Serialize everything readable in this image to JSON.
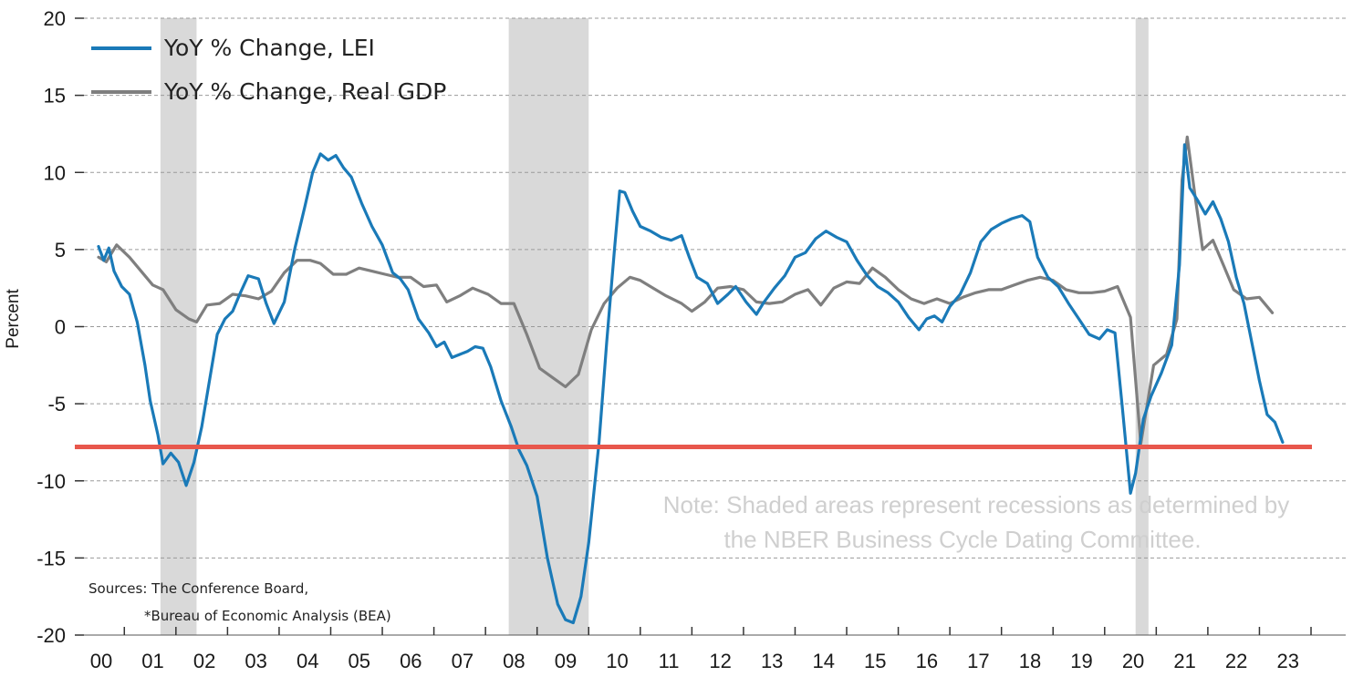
{
  "chart_data": {
    "type": "line",
    "ylabel": "Percent",
    "ylim": [
      -20,
      20
    ],
    "yticks": [
      20,
      15,
      10,
      5,
      0,
      -5,
      -10,
      -15,
      -20
    ],
    "xticks": [
      "00",
      "01",
      "02",
      "03",
      "04",
      "05",
      "06",
      "07",
      "08",
      "09",
      "10",
      "11",
      "12",
      "13",
      "14",
      "15",
      "16",
      "17",
      "18",
      "19",
      "20",
      "21",
      "22",
      "23"
    ],
    "xlim": [
      2000.0,
      2023.5
    ],
    "grid": "horizontal dashed",
    "legend_position": "top-left",
    "reference_line": {
      "y": -7.8,
      "color": "#e8574c"
    },
    "recessions": [
      [
        2001.2,
        2001.9
      ],
      [
        2007.95,
        2009.5
      ],
      [
        2020.1,
        2020.35
      ]
    ],
    "series": [
      {
        "name": "YoY % Change, LEI",
        "color": "#1a7ab8",
        "points": [
          [
            2000.0,
            5.2
          ],
          [
            2000.1,
            4.3
          ],
          [
            2000.2,
            5.1
          ],
          [
            2000.3,
            3.6
          ],
          [
            2000.45,
            2.6
          ],
          [
            2000.6,
            2.1
          ],
          [
            2000.75,
            0.3
          ],
          [
            2000.9,
            -2.5
          ],
          [
            2001.0,
            -4.8
          ],
          [
            2001.15,
            -7.0
          ],
          [
            2001.25,
            -8.9
          ],
          [
            2001.4,
            -8.2
          ],
          [
            2001.55,
            -8.8
          ],
          [
            2001.7,
            -10.3
          ],
          [
            2001.85,
            -8.8
          ],
          [
            2002.0,
            -6.5
          ],
          [
            2002.15,
            -3.5
          ],
          [
            2002.3,
            -0.5
          ],
          [
            2002.45,
            0.5
          ],
          [
            2002.6,
            1.0
          ],
          [
            2002.75,
            2.2
          ],
          [
            2002.9,
            3.3
          ],
          [
            2003.1,
            3.1
          ],
          [
            2003.25,
            1.5
          ],
          [
            2003.4,
            0.2
          ],
          [
            2003.6,
            1.6
          ],
          [
            2003.8,
            5.0
          ],
          [
            2004.0,
            7.8
          ],
          [
            2004.15,
            10.0
          ],
          [
            2004.3,
            11.2
          ],
          [
            2004.45,
            10.8
          ],
          [
            2004.6,
            11.1
          ],
          [
            2004.75,
            10.3
          ],
          [
            2004.9,
            9.7
          ],
          [
            2005.1,
            8.0
          ],
          [
            2005.3,
            6.5
          ],
          [
            2005.5,
            5.3
          ],
          [
            2005.7,
            3.5
          ],
          [
            2005.85,
            3.1
          ],
          [
            2006.0,
            2.4
          ],
          [
            2006.2,
            0.5
          ],
          [
            2006.4,
            -0.4
          ],
          [
            2006.55,
            -1.3
          ],
          [
            2006.7,
            -1.0
          ],
          [
            2006.85,
            -2.0
          ],
          [
            2007.0,
            -1.8
          ],
          [
            2007.15,
            -1.6
          ],
          [
            2007.3,
            -1.3
          ],
          [
            2007.45,
            -1.4
          ],
          [
            2007.6,
            -2.6
          ],
          [
            2007.8,
            -4.8
          ],
          [
            2008.0,
            -6.5
          ],
          [
            2008.15,
            -8.0
          ],
          [
            2008.3,
            -9.0
          ],
          [
            2008.5,
            -11.0
          ],
          [
            2008.7,
            -15.0
          ],
          [
            2008.9,
            -18.0
          ],
          [
            2009.05,
            -19.0
          ],
          [
            2009.2,
            -19.2
          ],
          [
            2009.35,
            -17.5
          ],
          [
            2009.5,
            -14.0
          ],
          [
            2009.7,
            -7.5
          ],
          [
            2009.85,
            -1.0
          ],
          [
            2010.0,
            5.0
          ],
          [
            2010.1,
            8.8
          ],
          [
            2010.2,
            8.7
          ],
          [
            2010.35,
            7.5
          ],
          [
            2010.5,
            6.5
          ],
          [
            2010.7,
            6.2
          ],
          [
            2010.9,
            5.8
          ],
          [
            2011.1,
            5.6
          ],
          [
            2011.3,
            5.9
          ],
          [
            2011.45,
            4.5
          ],
          [
            2011.6,
            3.2
          ],
          [
            2011.8,
            2.8
          ],
          [
            2012.0,
            1.5
          ],
          [
            2012.2,
            2.1
          ],
          [
            2012.35,
            2.6
          ],
          [
            2012.55,
            1.6
          ],
          [
            2012.75,
            0.8
          ],
          [
            2012.9,
            1.6
          ],
          [
            2013.1,
            2.5
          ],
          [
            2013.3,
            3.3
          ],
          [
            2013.5,
            4.5
          ],
          [
            2013.7,
            4.8
          ],
          [
            2013.9,
            5.7
          ],
          [
            2014.1,
            6.2
          ],
          [
            2014.3,
            5.8
          ],
          [
            2014.5,
            5.5
          ],
          [
            2014.7,
            4.3
          ],
          [
            2014.9,
            3.3
          ],
          [
            2015.1,
            2.6
          ],
          [
            2015.3,
            2.2
          ],
          [
            2015.5,
            1.6
          ],
          [
            2015.7,
            0.6
          ],
          [
            2015.9,
            -0.2
          ],
          [
            2016.05,
            0.5
          ],
          [
            2016.2,
            0.7
          ],
          [
            2016.35,
            0.3
          ],
          [
            2016.5,
            1.3
          ],
          [
            2016.7,
            2.1
          ],
          [
            2016.9,
            3.5
          ],
          [
            2017.1,
            5.5
          ],
          [
            2017.3,
            6.3
          ],
          [
            2017.5,
            6.7
          ],
          [
            2017.7,
            7.0
          ],
          [
            2017.9,
            7.2
          ],
          [
            2018.05,
            6.8
          ],
          [
            2018.2,
            4.5
          ],
          [
            2018.4,
            3.2
          ],
          [
            2018.6,
            2.6
          ],
          [
            2018.8,
            1.5
          ],
          [
            2019.0,
            0.5
          ],
          [
            2019.2,
            -0.5
          ],
          [
            2019.4,
            -0.8
          ],
          [
            2019.55,
            -0.2
          ],
          [
            2019.7,
            -0.4
          ],
          [
            2019.85,
            -5.5
          ],
          [
            2020.0,
            -10.8
          ],
          [
            2020.1,
            -9.5
          ],
          [
            2020.25,
            -6.0
          ],
          [
            2020.4,
            -4.5
          ],
          [
            2020.6,
            -3.0
          ],
          [
            2020.8,
            -1.2
          ],
          [
            2020.95,
            4.0
          ],
          [
            2021.05,
            11.8
          ],
          [
            2021.15,
            9.0
          ],
          [
            2021.3,
            8.2
          ],
          [
            2021.45,
            7.3
          ],
          [
            2021.6,
            8.1
          ],
          [
            2021.75,
            7.0
          ],
          [
            2021.9,
            5.5
          ],
          [
            2022.05,
            3.2
          ],
          [
            2022.2,
            1.5
          ],
          [
            2022.35,
            -1.0
          ],
          [
            2022.5,
            -3.5
          ],
          [
            2022.65,
            -5.7
          ],
          [
            2022.8,
            -6.2
          ],
          [
            2022.95,
            -7.5
          ]
        ]
      },
      {
        "name": "YoY % Change, Real GDP",
        "color": "#7f7f7f",
        "points": [
          [
            2000.0,
            4.5
          ],
          [
            2000.15,
            4.2
          ],
          [
            2000.35,
            5.3
          ],
          [
            2000.6,
            4.5
          ],
          [
            2000.85,
            3.5
          ],
          [
            2001.05,
            2.7
          ],
          [
            2001.25,
            2.4
          ],
          [
            2001.5,
            1.1
          ],
          [
            2001.75,
            0.5
          ],
          [
            2001.9,
            0.3
          ],
          [
            2002.1,
            1.4
          ],
          [
            2002.35,
            1.5
          ],
          [
            2002.6,
            2.1
          ],
          [
            2002.85,
            2.0
          ],
          [
            2003.1,
            1.8
          ],
          [
            2003.35,
            2.3
          ],
          [
            2003.6,
            3.5
          ],
          [
            2003.85,
            4.3
          ],
          [
            2004.1,
            4.3
          ],
          [
            2004.3,
            4.1
          ],
          [
            2004.55,
            3.4
          ],
          [
            2004.8,
            3.4
          ],
          [
            2005.05,
            3.8
          ],
          [
            2005.3,
            3.6
          ],
          [
            2005.55,
            3.4
          ],
          [
            2005.8,
            3.2
          ],
          [
            2006.05,
            3.2
          ],
          [
            2006.3,
            2.6
          ],
          [
            2006.55,
            2.7
          ],
          [
            2006.75,
            1.6
          ],
          [
            2007.0,
            2.0
          ],
          [
            2007.25,
            2.5
          ],
          [
            2007.55,
            2.1
          ],
          [
            2007.8,
            1.5
          ],
          [
            2008.05,
            1.5
          ],
          [
            2008.3,
            -0.5
          ],
          [
            2008.55,
            -2.7
          ],
          [
            2008.8,
            -3.3
          ],
          [
            2009.05,
            -3.9
          ],
          [
            2009.3,
            -3.1
          ],
          [
            2009.55,
            -0.2
          ],
          [
            2009.8,
            1.5
          ],
          [
            2010.05,
            2.5
          ],
          [
            2010.3,
            3.2
          ],
          [
            2010.5,
            3.0
          ],
          [
            2010.75,
            2.5
          ],
          [
            2011.0,
            2.0
          ],
          [
            2011.3,
            1.5
          ],
          [
            2011.5,
            1.0
          ],
          [
            2011.75,
            1.6
          ],
          [
            2012.0,
            2.5
          ],
          [
            2012.25,
            2.6
          ],
          [
            2012.5,
            2.4
          ],
          [
            2012.75,
            1.6
          ],
          [
            2013.0,
            1.5
          ],
          [
            2013.25,
            1.6
          ],
          [
            2013.5,
            2.1
          ],
          [
            2013.75,
            2.4
          ],
          [
            2014.0,
            1.4
          ],
          [
            2014.25,
            2.5
          ],
          [
            2014.5,
            2.9
          ],
          [
            2014.75,
            2.8
          ],
          [
            2015.0,
            3.8
          ],
          [
            2015.25,
            3.2
          ],
          [
            2015.5,
            2.4
          ],
          [
            2015.75,
            1.8
          ],
          [
            2016.0,
            1.5
          ],
          [
            2016.25,
            1.8
          ],
          [
            2016.5,
            1.5
          ],
          [
            2016.75,
            1.9
          ],
          [
            2017.0,
            2.2
          ],
          [
            2017.25,
            2.4
          ],
          [
            2017.5,
            2.4
          ],
          [
            2017.75,
            2.7
          ],
          [
            2018.0,
            3.0
          ],
          [
            2018.25,
            3.2
          ],
          [
            2018.5,
            3.0
          ],
          [
            2018.75,
            2.4
          ],
          [
            2019.0,
            2.2
          ],
          [
            2019.25,
            2.2
          ],
          [
            2019.5,
            2.3
          ],
          [
            2019.75,
            2.6
          ],
          [
            2020.0,
            0.6
          ],
          [
            2020.2,
            -7.6
          ],
          [
            2020.45,
            -2.5
          ],
          [
            2020.7,
            -1.8
          ],
          [
            2020.9,
            0.5
          ],
          [
            2021.0,
            9.5
          ],
          [
            2021.1,
            12.3
          ],
          [
            2021.25,
            8.5
          ],
          [
            2021.4,
            5.0
          ],
          [
            2021.6,
            5.6
          ],
          [
            2021.8,
            4.0
          ],
          [
            2022.0,
            2.4
          ],
          [
            2022.25,
            1.8
          ],
          [
            2022.5,
            1.9
          ],
          [
            2022.75,
            0.9
          ]
        ]
      }
    ],
    "legend": [
      "YoY % Change, LEI",
      "YoY % Change, Real GDP"
    ],
    "note_lines": [
      "Note: Shaded areas represent recessions as determined by",
      "the NBER Business Cycle Dating Committee."
    ],
    "source_lines": [
      "Sources: The Conference Board,",
      "*Bureau of Economic Analysis (BEA)"
    ]
  }
}
